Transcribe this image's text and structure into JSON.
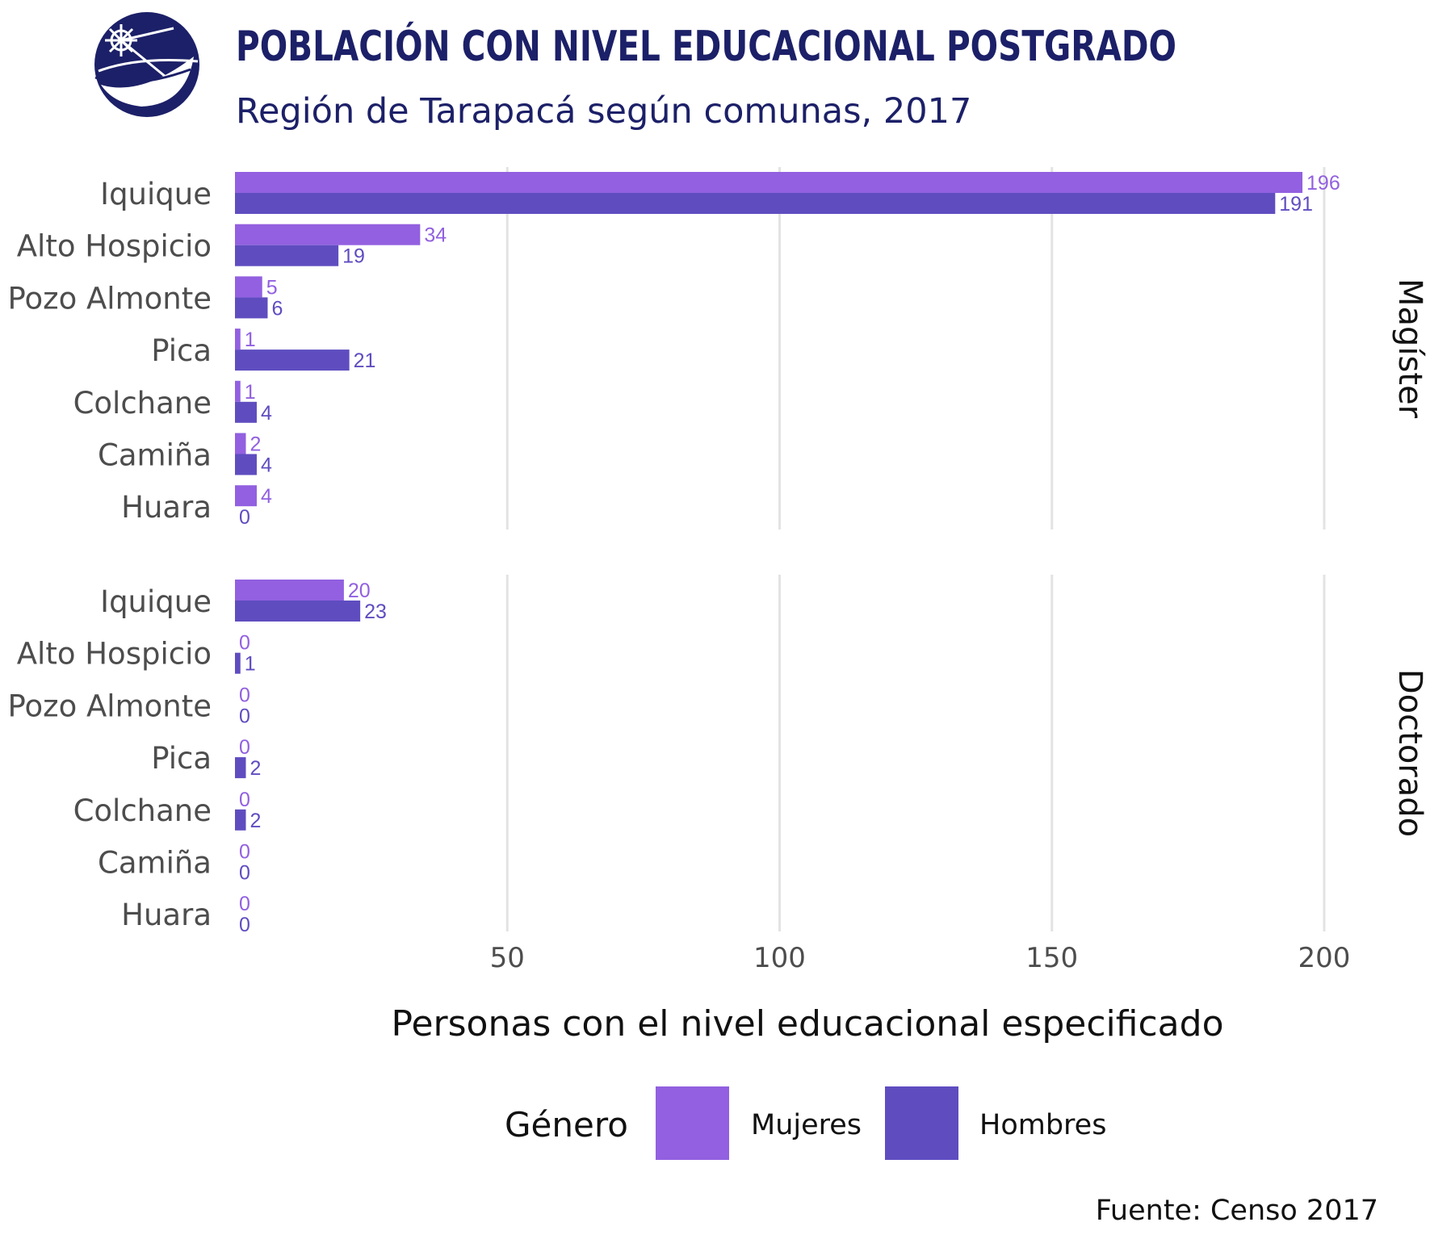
{
  "header": {
    "title": "POBLACIÓN CON NIVEL EDUCACIONAL POSTGRADO",
    "subtitle": "Región de Tarapacá según comunas, 2017"
  },
  "colors": {
    "mujeres": "#9260E0",
    "hombres": "#5F4DC0",
    "title": "#1C2068",
    "grid": "#E3E3E3",
    "axis_text": "#4D4D4D"
  },
  "chart_data": {
    "type": "bar",
    "orientation": "horizontal",
    "xlabel": "Personas con el nivel educacional especificado",
    "xlim": [
      0,
      200
    ],
    "xticks": [
      50,
      100,
      150,
      200
    ],
    "grid": true,
    "legend": {
      "title": "Género",
      "position": "bottom",
      "entries": [
        "Mujeres",
        "Hombres"
      ]
    },
    "categories": [
      "Iquique",
      "Alto Hospicio",
      "Pozo Almonte",
      "Pica",
      "Colchane",
      "Camiña",
      "Huara"
    ],
    "facets": [
      {
        "label": "Magíster",
        "series": [
          {
            "name": "Mujeres",
            "values": [
              196,
              34,
              5,
              1,
              1,
              2,
              4
            ]
          },
          {
            "name": "Hombres",
            "values": [
              191,
              19,
              6,
              21,
              4,
              4,
              0
            ]
          }
        ]
      },
      {
        "label": "Doctorado",
        "series": [
          {
            "name": "Mujeres",
            "values": [
              20,
              0,
              0,
              0,
              0,
              0,
              0
            ]
          },
          {
            "name": "Hombres",
            "values": [
              23,
              1,
              0,
              2,
              2,
              0,
              0
            ]
          }
        ]
      }
    ]
  },
  "footer": {
    "source": "Fuente: Censo 2017"
  },
  "logo": {
    "icon": "regional-emblem-icon"
  }
}
